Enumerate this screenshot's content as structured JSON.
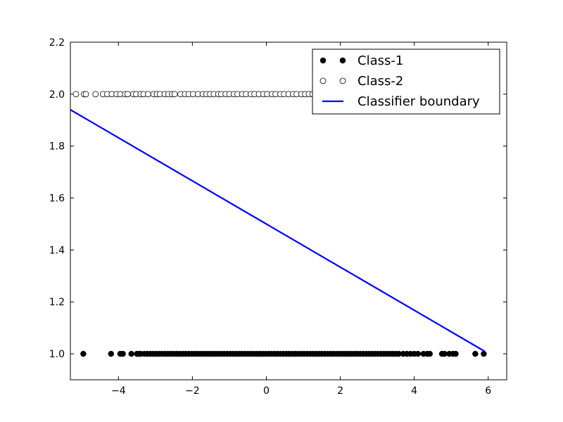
{
  "chart_data": {
    "type": "scatter",
    "title": "",
    "xlabel": "",
    "ylabel": "",
    "xlim": [
      -5.3,
      6.5
    ],
    "ylim": [
      0.9,
      2.2
    ],
    "xticks": [
      -4,
      -2,
      0,
      2,
      4,
      6
    ],
    "xtick_labels": [
      "−4",
      "−2",
      "0",
      "2",
      "4",
      "6"
    ],
    "yticks": [
      1.0,
      1.2,
      1.4,
      1.6,
      1.8,
      2.0,
      2.2
    ],
    "ytick_labels": [
      "1.0",
      "1.2",
      "1.4",
      "1.6",
      "1.8",
      "2.0",
      "2.2"
    ],
    "grid": false,
    "legend_position": "top-right",
    "series": [
      {
        "name": "Class-1",
        "marker": "filled-circle",
        "color": "#000000",
        "y": 1.0,
        "x": [
          -4.95,
          -4.2,
          -3.95,
          -3.88,
          -3.65,
          -3.5,
          -3.45,
          -3.4,
          -3.3,
          -3.22,
          -3.14,
          -3.06,
          -2.98,
          -2.9,
          -2.82,
          -2.74,
          -2.66,
          -2.58,
          -2.5,
          -2.42,
          -2.34,
          -2.26,
          -2.18,
          -2.1,
          -2.02,
          -1.94,
          -1.86,
          -1.78,
          -1.7,
          -1.62,
          -1.54,
          -1.46,
          -1.38,
          -1.3,
          -1.22,
          -1.14,
          -1.06,
          -0.98,
          -0.9,
          -0.82,
          -0.74,
          -0.66,
          -0.58,
          -0.5,
          -0.42,
          -0.34,
          -0.26,
          -0.18,
          -0.1,
          -0.02,
          0.06,
          0.14,
          0.22,
          0.3,
          0.38,
          0.46,
          0.54,
          0.62,
          0.7,
          0.78,
          0.86,
          0.94,
          1.02,
          1.1,
          1.18,
          1.26,
          1.34,
          1.42,
          1.5,
          1.58,
          1.66,
          1.74,
          1.82,
          1.9,
          1.98,
          2.06,
          2.14,
          2.22,
          2.3,
          2.38,
          2.46,
          2.54,
          2.62,
          2.7,
          2.78,
          2.86,
          2.94,
          3.02,
          3.1,
          3.18,
          3.26,
          3.34,
          3.42,
          3.5,
          3.58,
          3.7,
          3.8,
          3.9,
          4.0,
          4.1,
          4.25,
          4.35,
          4.42,
          4.75,
          4.82,
          4.95,
          5.05,
          5.12,
          5.65,
          5.88
        ]
      },
      {
        "name": "Class-2",
        "marker": "open-circle",
        "color": "#000000",
        "y": 2.0,
        "x": [
          -5.15,
          -4.93,
          -4.88,
          -4.62,
          -4.42,
          -4.3,
          -4.18,
          -4.05,
          -3.95,
          -3.82,
          -3.75,
          -3.6,
          -3.52,
          -3.4,
          -3.32,
          -3.2,
          -3.05,
          -2.96,
          -2.88,
          -2.75,
          -2.65,
          -2.55,
          -2.48,
          -2.32,
          -2.2,
          -2.1,
          -1.98,
          -1.85,
          -1.72,
          -1.62,
          -1.52,
          -1.42,
          -1.3,
          -1.22,
          -1.1,
          -1.0,
          -0.88,
          -0.78,
          -0.65,
          -0.55,
          -0.42,
          -0.32,
          -0.2,
          -0.08,
          0.02,
          0.15,
          0.25,
          0.38,
          0.48,
          0.6,
          0.72,
          0.82,
          0.95,
          1.05,
          1.15,
          1.25
        ]
      },
      {
        "name": "Classifier boundary",
        "type": "line",
        "color": "#0000ff",
        "x": [
          -5.3,
          5.9
        ],
        "y": [
          1.94,
          1.01
        ]
      }
    ]
  }
}
